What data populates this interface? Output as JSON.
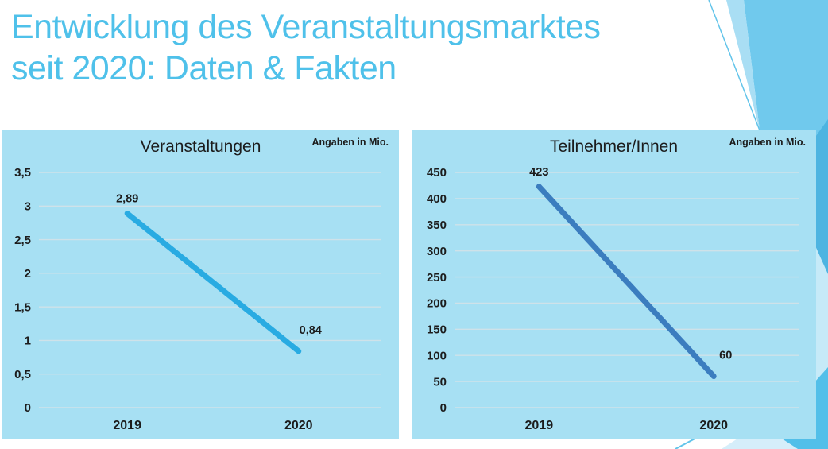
{
  "slide": {
    "title_line1": "Entwicklung des Veranstaltungsmarktes",
    "title_line2": "seit 2020: Daten & Fakten",
    "title_color": "#4fc1ea"
  },
  "decoration": {
    "corner_main": "#70c9ed",
    "corner_light": "#a9def4",
    "corner_pale": "#c6eaf8",
    "corner_dark": "#4db4e1",
    "corner_mid": "#52bfe9",
    "corner_bottom_pale": "#d5eefa",
    "corner_line": "#62c4ea"
  },
  "chart_data": [
    {
      "type": "line",
      "title": "Veranstaltungen",
      "unit_label": "Angaben in Mio.",
      "categories": [
        "2019",
        "2020"
      ],
      "values": [
        2.89,
        0.84
      ],
      "value_labels": [
        "2,89",
        "0,84"
      ],
      "ylim": [
        0,
        3.5
      ],
      "yticks": [
        0,
        0.5,
        1,
        1.5,
        2,
        2.5,
        3,
        3.5
      ],
      "ytick_labels": [
        "0",
        "0,5",
        "1",
        "1,5",
        "2",
        "2,5",
        "3",
        "3,5"
      ],
      "grid": true,
      "legend": false,
      "line_color": "#29abe2",
      "panel_background": "#a7e0f3",
      "gridline_color": "#cfe2e9",
      "text_color": "#1c1c1c"
    },
    {
      "type": "line",
      "title": "Teilnehmer/Innen",
      "unit_label": "Angaben in Mio.",
      "categories": [
        "2019",
        "2020"
      ],
      "values": [
        423,
        60
      ],
      "value_labels": [
        "423",
        "60"
      ],
      "ylim": [
        0,
        450
      ],
      "yticks": [
        0,
        50,
        100,
        150,
        200,
        250,
        300,
        350,
        400,
        450
      ],
      "ytick_labels": [
        "0",
        "50",
        "100",
        "150",
        "200",
        "250",
        "300",
        "350",
        "400",
        "450"
      ],
      "grid": true,
      "legend": false,
      "line_color": "#3b7dbf",
      "panel_background": "#a7e0f3",
      "gridline_color": "#cfe2e9",
      "text_color": "#1c1c1c"
    }
  ]
}
